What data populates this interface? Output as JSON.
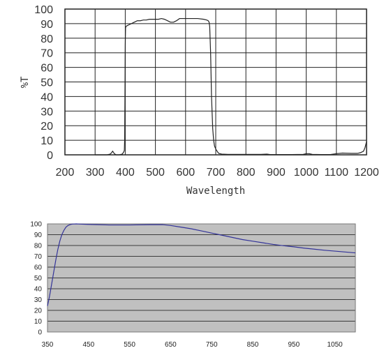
{
  "chart_data": [
    {
      "type": "line",
      "xlabel": "Wavelength",
      "ylabel": "%T",
      "xlim": [
        200,
        1200
      ],
      "ylim": [
        0,
        100
      ],
      "x_ticks": [
        200,
        300,
        400,
        500,
        600,
        700,
        800,
        900,
        1000,
        1100,
        1200
      ],
      "y_ticks": [
        0,
        10,
        20,
        30,
        40,
        50,
        60,
        70,
        80,
        90,
        100
      ],
      "grid": true,
      "background": "#ffffff",
      "line_color": "#222222",
      "series": [
        {
          "x": [
            300,
            340,
            350,
            355,
            358,
            360,
            363,
            366,
            370,
            380,
            390,
            395,
            397,
            398,
            399,
            400,
            401,
            402,
            403,
            405,
            410,
            420,
            430,
            440,
            450,
            460,
            470,
            480,
            490,
            500,
            510,
            520,
            530,
            540,
            550,
            560,
            570,
            580,
            600,
            620,
            640,
            660,
            670,
            675,
            678,
            680,
            683,
            686,
            690,
            693,
            696,
            700,
            703,
            706,
            710,
            720,
            740,
            760,
            780,
            800,
            850,
            870,
            880,
            900,
            950,
            990,
            1000,
            1010,
            1020,
            1050,
            1080,
            1100,
            1120,
            1150,
            1170,
            1180,
            1190,
            1195,
            1200
          ],
          "y": [
            0,
            0,
            0.5,
            1.5,
            2.5,
            2,
            1,
            0.5,
            0,
            0,
            0.5,
            2,
            3,
            10,
            40,
            75,
            87,
            88,
            88,
            88.5,
            89,
            90,
            91,
            92,
            92,
            92.5,
            92.5,
            93,
            93,
            93,
            93,
            93.5,
            93,
            92,
            91,
            91,
            92,
            93.5,
            93.5,
            93.5,
            93.5,
            93,
            92.5,
            92,
            91,
            88,
            70,
            40,
            18,
            10,
            6,
            4,
            3,
            2,
            1,
            0.5,
            0.3,
            0.3,
            0.3,
            0.3,
            0.3,
            0.5,
            0.2,
            0.2,
            0.2,
            0.3,
            0.8,
            0.8,
            0.3,
            0.2,
            0.2,
            0.8,
            1.2,
            1,
            1,
            1.5,
            2.5,
            5,
            9
          ]
        }
      ]
    },
    {
      "type": "line",
      "xlabel": "",
      "ylabel": "",
      "xlim": [
        350,
        1100
      ],
      "ylim": [
        0,
        100
      ],
      "x_ticks": [
        350,
        450,
        550,
        650,
        750,
        850,
        950,
        1050
      ],
      "y_ticks": [
        0,
        10,
        20,
        30,
        40,
        50,
        60,
        70,
        80,
        90,
        100
      ],
      "grid": true,
      "background": "#c0c0c0",
      "line_color": "#333399",
      "series": [
        {
          "x": [
            350,
            355,
            360,
            365,
            370,
            375,
            380,
            385,
            390,
            395,
            400,
            405,
            410,
            420,
            430,
            450,
            500,
            550,
            600,
            630,
            650,
            675,
            700,
            725,
            750,
            775,
            800,
            825,
            850,
            875,
            900,
            925,
            950,
            975,
            1000,
            1025,
            1050,
            1075,
            1100
          ],
          "y": [
            24,
            33,
            44,
            55,
            66,
            76,
            84,
            90,
            94,
            97,
            98.5,
            99.3,
            99.8,
            100,
            99.8,
            99.5,
            99,
            99,
            99.3,
            99.3,
            98.5,
            97,
            95.5,
            93.5,
            91.5,
            89.5,
            87.5,
            85.5,
            84,
            82.5,
            81,
            79.8,
            78.8,
            77.6,
            76.6,
            75.6,
            74.8,
            74,
            73.2
          ]
        }
      ]
    }
  ]
}
